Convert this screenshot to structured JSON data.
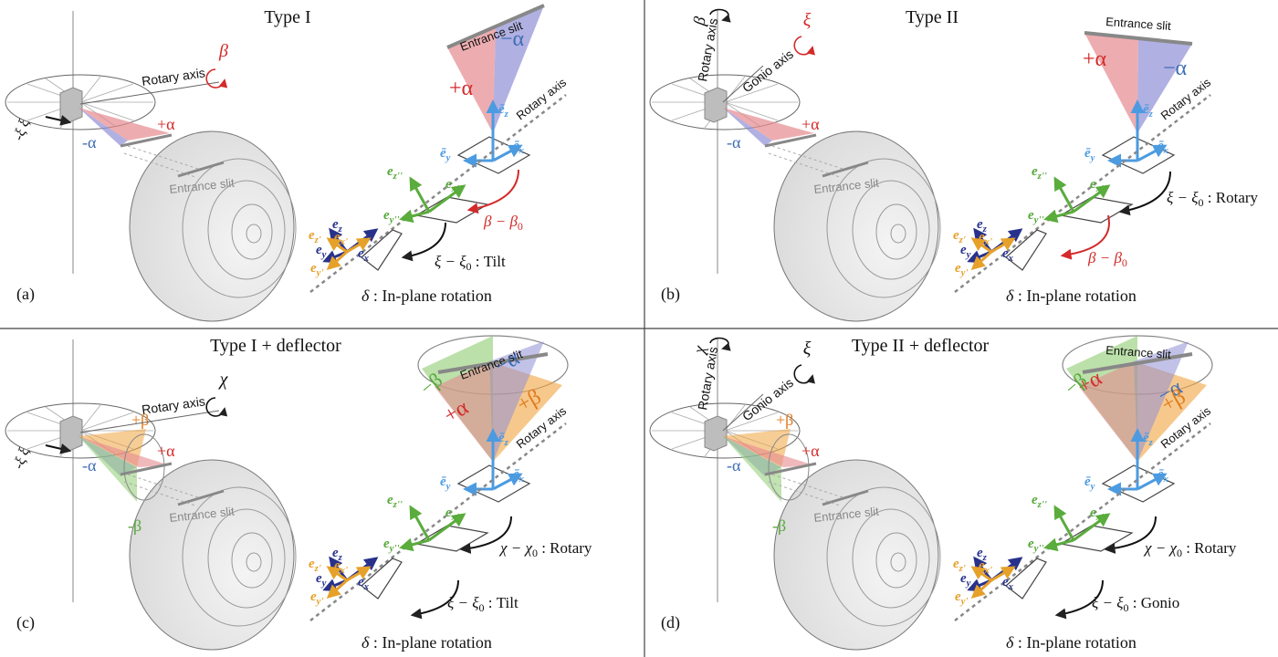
{
  "panels": [
    {
      "id": "a",
      "label": "(a)",
      "title": "Type I",
      "entrance_slit": "Entrance slit",
      "beam_rotary_axis": "Rotary axis",
      "beam_rotary_symbol": "β",
      "lens_plus_alpha": "+α",
      "lens_minus_alpha": "-α",
      "xi_label": "-ξ",
      "xi_plus": "ξ",
      "fan_entrance_slit": "Entrance slit",
      "fan_plus": "+α",
      "fan_minus": "−α",
      "coord_rotary_axis": "Rotary axis",
      "ez": "ē",
      "ez_sub": "z",
      "ex": "ē",
      "ex_sub": "x",
      "ey": "ē",
      "ey_sub": "y",
      "ezpp": "e",
      "ezpp_sub": "z''",
      "expp": "e",
      "expp_sub": "x''",
      "eypp": "e",
      "eypp_sub": "y''",
      "bz": "e",
      "bz_sub": "z",
      "bx": "e",
      "bx_sub": "x",
      "by": "e",
      "by_sub": "y",
      "oz": "e",
      "oz_sub": "z'",
      "ox": "e",
      "ox_sub": "x'",
      "oy": "e",
      "oy_sub": "y'",
      "rot1": "β − β",
      "rot1_sub": "0",
      "rot1_suffix": "",
      "rot2": "ξ − ξ",
      "rot2_sub": "0",
      "rot2_suffix": " : Tilt",
      "inplane": "δ : In-plane rotation"
    },
    {
      "id": "b",
      "label": "(b)",
      "title": "Type II",
      "entrance_slit": "Entrance slit",
      "beam_rotary_axis": "Rotary axis",
      "beam_gonio_axis": "Gonio axis",
      "beam_rotary_symbol": "β",
      "beam_xi_symbol": "ξ",
      "lens_plus_alpha": "+α",
      "lens_minus_alpha": "-α",
      "fan_entrance_slit": "Entrance slit",
      "fan_plus": "+α",
      "fan_minus": "−α",
      "coord_rotary_axis": "Rotary axis",
      "ez": "ē",
      "ez_sub": "z",
      "ex": "ē",
      "ex_sub": "x",
      "ey": "ē",
      "ey_sub": "y",
      "ezpp": "e",
      "ezpp_sub": "z''",
      "expp": "e",
      "expp_sub": "x''",
      "eypp": "e",
      "eypp_sub": "y''",
      "bz": "e",
      "bz_sub": "z",
      "bx": "e",
      "bx_sub": "x",
      "by": "e",
      "by_sub": "y",
      "oz": "e",
      "oz_sub": "z'",
      "ox": "e",
      "ox_sub": "x'",
      "oy": "e",
      "oy_sub": "y'",
      "rot1": "ξ − ξ",
      "rot1_sub": "0",
      "rot1_suffix": " : Rotary",
      "rot2": "β − β",
      "rot2_sub": "0",
      "rot2_suffix": "",
      "inplane": "δ : In-plane rotation"
    },
    {
      "id": "c",
      "label": "(c)",
      "title": "Type I + deflector",
      "entrance_slit": "Entrance slit",
      "beam_rotary_axis": "Rotary axis",
      "beam_rotary_symbol": "χ",
      "lens_plus_alpha": "+α",
      "lens_minus_alpha": "-α",
      "lens_plus_beta": "+β",
      "lens_minus_beta": "-β",
      "xi_label": "-ξ",
      "xi_plus": "ξ",
      "fan_entrance_slit": "Entrance slit",
      "fan_plus": "+α",
      "fan_minus": "−α",
      "fan_plus_beta": "+β",
      "fan_minus_beta": "−β",
      "coord_rotary_axis": "Rotary axis",
      "ez": "ē",
      "ez_sub": "z",
      "ex": "ē",
      "ex_sub": "x",
      "ey": "ē",
      "ey_sub": "y",
      "ezpp": "e",
      "ezpp_sub": "z''",
      "expp": "e",
      "expp_sub": "x''",
      "eypp": "e",
      "eypp_sub": "y''",
      "bz": "e",
      "bz_sub": "z",
      "bx": "e",
      "bx_sub": "x",
      "by": "e",
      "by_sub": "y",
      "oz": "e",
      "oz_sub": "z'",
      "ox": "e",
      "ox_sub": "x'",
      "oy": "e",
      "oy_sub": "y'",
      "rot1": "χ − χ",
      "rot1_sub": "0",
      "rot1_suffix": " : Rotary",
      "rot2": "ξ − ξ",
      "rot2_sub": "0",
      "rot2_suffix": " : Tilt",
      "inplane": "δ : In-plane rotation"
    },
    {
      "id": "d",
      "label": "(d)",
      "title": "Type II + deflector",
      "entrance_slit": "Entrance slit",
      "beam_rotary_axis": "Rotary axis",
      "beam_gonio_axis": "Gonio axis",
      "beam_rotary_symbol": "χ",
      "beam_xi_symbol": "ξ",
      "lens_plus_alpha": "+α",
      "lens_minus_alpha": "-α",
      "lens_plus_beta": "+β",
      "lens_minus_beta": "-β",
      "fan_entrance_slit": "Entrance slit",
      "fan_plus": "+α",
      "fan_minus": "−α",
      "fan_plus_beta": "+β",
      "fan_minus_beta": "−β",
      "coord_rotary_axis": "Rotary axis",
      "ez": "ē",
      "ez_sub": "z",
      "ex": "ē",
      "ex_sub": "x",
      "ey": "ē",
      "ey_sub": "y",
      "ezpp": "e",
      "ezpp_sub": "z''",
      "expp": "e",
      "expp_sub": "x''",
      "eypp": "e",
      "eypp_sub": "y''",
      "bz": "e",
      "bz_sub": "z",
      "bx": "e",
      "bx_sub": "x",
      "by": "e",
      "by_sub": "y",
      "oz": "e",
      "oz_sub": "z'",
      "ox": "e",
      "ox_sub": "x'",
      "oy": "e",
      "oy_sub": "y'",
      "rot1": "χ − χ",
      "rot1_sub": "0",
      "rot1_suffix": " : Rotary",
      "rot2": "ξ − ξ",
      "rot2_sub": "0",
      "rot2_suffix": " : Gonio",
      "inplane": "δ : In-plane rotation"
    }
  ],
  "colors": {
    "alpha_plus": "#e58a8f",
    "alpha_minus": "#8f8fd6",
    "beta_plus": "#f0a440",
    "beta_minus": "#8fcc72",
    "red_label": "#d42a2a",
    "blue_label": "#3d6db5",
    "orange_label": "#e07a1c",
    "green_label": "#56a83a",
    "light_blue": "#4c9be0",
    "navy": "#28328c",
    "gold": "#e6a12a",
    "green_axis": "#5aac3c",
    "gray_line": "#8a8a8a"
  }
}
